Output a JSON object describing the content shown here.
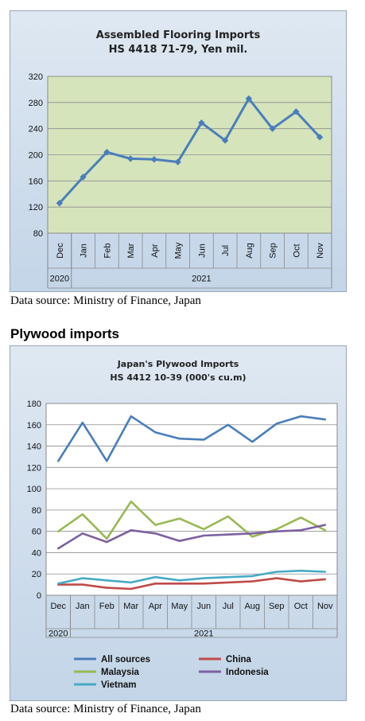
{
  "section_heading": "Plywood imports",
  "source_note_1": "Data source: Ministry of Finance, Japan",
  "source_note_2": "Data source: Ministry of Finance, Japan",
  "chart_data": [
    {
      "type": "line",
      "title": "Assembled Flooring Imports",
      "subtitle": "HS 4418 71-79, Yen mil.",
      "categories": [
        "Dec",
        "Jan",
        "Feb",
        "Mar",
        "Apr",
        "May",
        "Jun",
        "Jul",
        "Aug",
        "Sep",
        "Oct",
        "Nov"
      ],
      "year_labels": [
        "2020",
        "2021"
      ],
      "ylim": [
        80,
        320
      ],
      "yticks": [
        80,
        120,
        160,
        200,
        240,
        280,
        320
      ],
      "grid": "horizontal",
      "plot_color": "#d6e4bc",
      "series": [
        {
          "values": [
            126,
            166,
            204,
            194,
            193,
            189,
            249,
            222,
            286,
            240,
            266,
            227
          ],
          "color": "#4a7ebb"
        }
      ]
    },
    {
      "type": "line",
      "title": "Japan's Plywood Imports",
      "subtitle": "HS 4412 10-39 (000's cu.m)",
      "categories": [
        "Dec",
        "Jan",
        "Feb",
        "Mar",
        "Apr",
        "May",
        "Jun",
        "Jul",
        "Aug",
        "Sep",
        "Oct",
        "Nov"
      ],
      "year_labels": [
        "2020",
        "2021"
      ],
      "ylim": [
        0,
        180
      ],
      "yticks": [
        0,
        20,
        40,
        60,
        80,
        100,
        120,
        140,
        160,
        180
      ],
      "grid": "horizontal",
      "plot_color": "#ffffff",
      "legend_position": "bottom",
      "series": [
        {
          "name": "All sources",
          "color": "#4a7ebb",
          "values": [
            126,
            162,
            126,
            168,
            153,
            147,
            146,
            160,
            144,
            161,
            168,
            165
          ]
        },
        {
          "name": "China",
          "color": "#be4b48",
          "values": [
            10,
            10,
            7,
            6,
            11,
            11,
            11,
            12,
            13,
            16,
            13,
            15
          ]
        },
        {
          "name": "Malaysia",
          "color": "#98b954",
          "values": [
            60,
            76,
            53,
            88,
            66,
            72,
            62,
            74,
            55,
            62,
            73,
            61
          ]
        },
        {
          "name": "Indonesia",
          "color": "#7d60a0",
          "values": [
            44,
            58,
            50,
            61,
            58,
            51,
            56,
            57,
            58,
            60,
            61,
            66
          ]
        },
        {
          "name": "Vietnam",
          "color": "#46aac5",
          "values": [
            11,
            16,
            14,
            12,
            17,
            14,
            16,
            17,
            18,
            22,
            23,
            22
          ]
        }
      ]
    }
  ]
}
